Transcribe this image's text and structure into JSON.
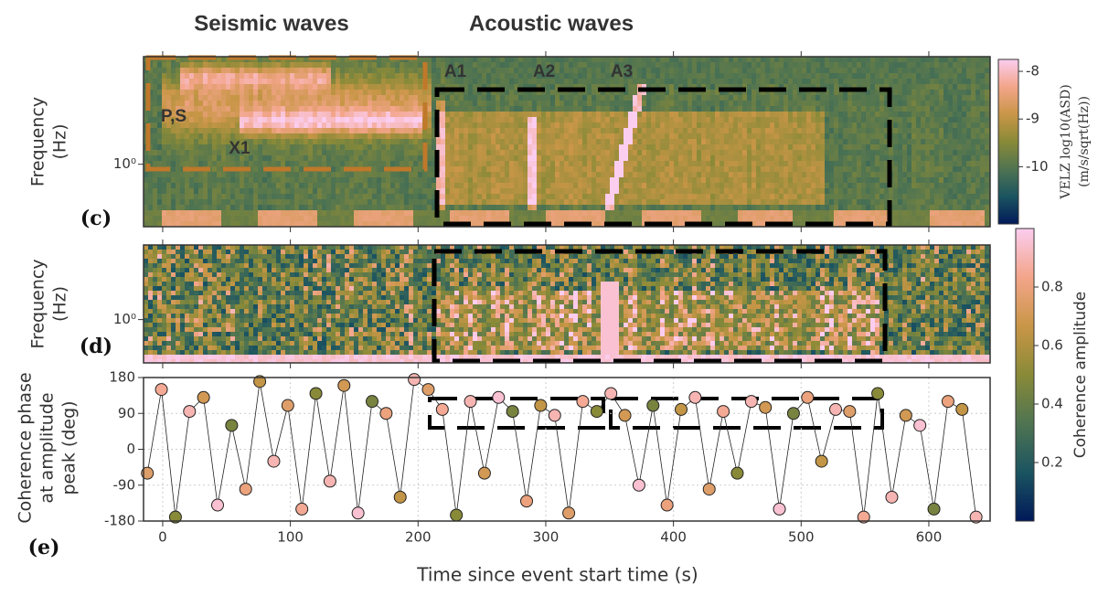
{
  "chart_data": [
    {
      "type": "spectrogram",
      "panel_label": "(c)",
      "ylabel": [
        "Frequency",
        "(Hz)"
      ],
      "yscale": "log",
      "ylim": [
        0.5,
        3.3
      ],
      "yticks": [
        {
          "value": 1,
          "label": "10⁰"
        }
      ],
      "colorbar": {
        "label": [
          "VELZ log10(ASD)",
          "(m/s/sqrt(Hz))"
        ],
        "lim": [
          -11.2,
          -7.75
        ],
        "ticks": [
          -8,
          -9,
          -10
        ]
      },
      "annotations": [
        {
          "text": "Seismic waves",
          "color": "#c0782a"
        },
        {
          "text": "Acoustic waves",
          "color": "#000000"
        },
        {
          "text": "A1",
          "color": "#111111"
        },
        {
          "text": "A2",
          "color": "#111111"
        },
        {
          "text": "A3",
          "color": "#111111"
        },
        {
          "text": "P,S",
          "color": "#111111"
        },
        {
          "text": "X1",
          "color": "#111111"
        }
      ]
    },
    {
      "type": "spectrogram",
      "panel_label": "(d)",
      "ylabel": [
        "Frequency",
        "(Hz)"
      ],
      "yscale": "log",
      "ylim": [
        0.5,
        3.3
      ],
      "yticks": [
        {
          "value": 1,
          "label": "10⁰"
        }
      ],
      "colorbar": {
        "label": "Coherence amplitude",
        "lim": [
          0,
          1
        ],
        "ticks": [
          0.2,
          0.4,
          0.6,
          0.8
        ]
      }
    },
    {
      "type": "scatter",
      "panel_label": "(e)",
      "ylabel": [
        "Coherence phase",
        "at amplitude",
        "peak (deg)"
      ],
      "xlabel": "Time since event start time (s)",
      "xlim": [
        -15,
        648
      ],
      "xticks": [
        0,
        100,
        200,
        300,
        400,
        500,
        600
      ],
      "ylim": [
        -180,
        180
      ],
      "yticks": [
        -180,
        -90,
        0,
        90,
        180
      ],
      "grid": true,
      "colormap": [
        "#011959",
        "#1b5461",
        "#4f7451",
        "#898a38",
        "#c99647",
        "#f3a58a",
        "#fbcdef"
      ],
      "x": [
        -12,
        -1,
        10,
        21,
        32,
        43,
        54,
        65,
        76,
        87,
        98,
        109,
        120,
        131,
        142,
        153,
        164,
        175,
        186,
        197,
        208,
        219,
        230,
        241,
        252,
        263,
        274,
        285,
        296,
        307,
        318,
        329,
        340,
        351,
        362,
        373,
        384,
        395,
        406,
        417,
        428,
        439,
        450,
        461,
        472,
        483,
        494,
        505,
        516,
        527,
        538,
        549,
        560,
        571,
        582,
        593,
        604,
        615,
        626,
        637
      ],
      "values": [
        -60,
        150,
        -170,
        95,
        130,
        -140,
        60,
        -100,
        170,
        -30,
        110,
        -150,
        140,
        -80,
        160,
        -160,
        120,
        90,
        -120,
        175,
        150,
        100,
        -165,
        120,
        -60,
        130,
        95,
        -130,
        110,
        85,
        -160,
        120,
        95,
        140,
        85,
        -90,
        110,
        -140,
        100,
        130,
        -100,
        95,
        -60,
        120,
        105,
        -150,
        90,
        130,
        -30,
        100,
        95,
        -170,
        140,
        -120,
        85,
        60,
        -150,
        120,
        100,
        -170
      ],
      "amplitude": [
        0.75,
        0.85,
        0.5,
        0.9,
        0.7,
        0.95,
        0.45,
        0.8,
        0.65,
        0.9,
        0.75,
        0.85,
        0.5,
        0.9,
        0.7,
        0.95,
        0.45,
        0.8,
        0.65,
        0.9,
        0.75,
        0.85,
        0.5,
        0.9,
        0.7,
        0.95,
        0.45,
        0.8,
        0.65,
        0.9,
        0.75,
        0.85,
        0.5,
        0.9,
        0.7,
        0.95,
        0.45,
        0.8,
        0.65,
        0.9,
        0.75,
        0.85,
        0.5,
        0.9,
        0.7,
        0.95,
        0.45,
        0.8,
        0.65,
        0.9,
        0.75,
        0.85,
        0.5,
        0.9,
        0.7,
        0.95,
        0.45,
        0.8,
        0.65,
        0.9
      ]
    }
  ]
}
